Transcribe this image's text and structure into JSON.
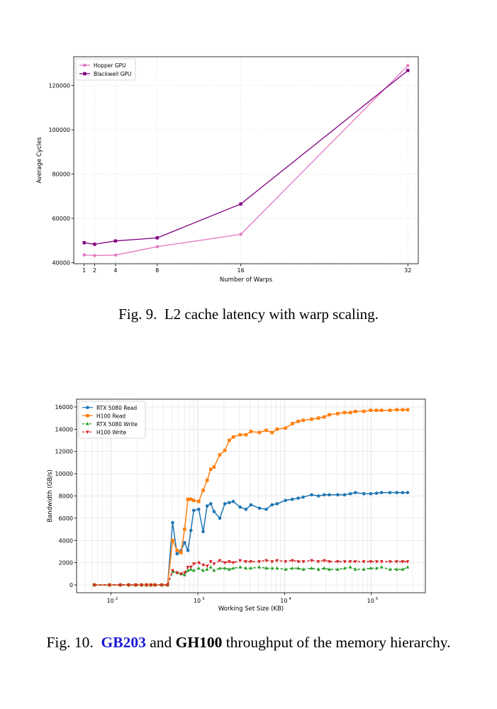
{
  "figure9": {
    "caption_prefix": "Fig. 9.",
    "caption_text": "L2 cache latency with warp scaling.",
    "chart_data": {
      "type": "line",
      "xlabel": "Number of Warps",
      "ylabel": "Average Cycles",
      "xlim": [
        0,
        33
      ],
      "ylim": [
        39500,
        133000
      ],
      "x_ticks": [
        1,
        2,
        4,
        8,
        16,
        32
      ],
      "y_ticks": [
        40000,
        60000,
        80000,
        100000,
        120000
      ],
      "grid": true,
      "legend_position": "top-left",
      "x": [
        1,
        2,
        4,
        8,
        16,
        32
      ],
      "series": [
        {
          "name": "Hopper GPU",
          "color": "#e377c2",
          "marker": "circle",
          "values": [
            43500,
            43200,
            43400,
            47200,
            52800,
            129000
          ]
        },
        {
          "name": "Blackwell GPU",
          "color": "#800080",
          "marker": "square",
          "values": [
            49000,
            48300,
            49800,
            51200,
            66500,
            126800
          ]
        }
      ]
    }
  },
  "figure10": {
    "caption_prefix": "Fig. 10.",
    "caption_gpu1": "GB203",
    "caption_and": "and",
    "caption_gpu2": "GH100",
    "caption_rest": "throughput of the memory hierarchy.",
    "chart_data": {
      "type": "line",
      "xlabel": "Working Set Size (KB)",
      "ylabel": "Bandwidth (GB/s)",
      "x_scale": "log",
      "xlim": [
        40,
        420000
      ],
      "ylim": [
        -700,
        16700
      ],
      "y_ticks": [
        0,
        2000,
        4000,
        6000,
        8000,
        10000,
        12000,
        14000,
        16000
      ],
      "grid": true,
      "legend_position": "top-left",
      "series": [
        {
          "name": "RTX 5080 Read",
          "color": "#1f77b4",
          "marker": "circle",
          "linestyle": "solid",
          "x": [
            64,
            96,
            128,
            160,
            192,
            224,
            256,
            288,
            320,
            384,
            448,
            512,
            576,
            640,
            704,
            768,
            832,
            896,
            1024,
            1152,
            1280,
            1408,
            1536,
            1792,
            2048,
            2304,
            2560,
            3072,
            3584,
            4096,
            5120,
            6144,
            7168,
            8192,
            10240,
            12288,
            14336,
            16384,
            20480,
            24576,
            28672,
            32768,
            40960,
            49152,
            57344,
            65536,
            81920,
            98304,
            114688,
            131072,
            163840,
            196608,
            229376,
            262144
          ],
          "values": [
            0,
            0,
            0,
            0,
            0,
            0,
            0,
            0,
            0,
            0,
            0,
            5600,
            2800,
            3100,
            3800,
            3100,
            4900,
            6700,
            6800,
            4800,
            7100,
            7300,
            6600,
            6000,
            7300,
            7400,
            7500,
            7000,
            6800,
            7200,
            6900,
            6800,
            7200,
            7300,
            7600,
            7700,
            7800,
            7900,
            8100,
            8000,
            8100,
            8100,
            8100,
            8100,
            8200,
            8300,
            8200,
            8200,
            8250,
            8300,
            8300,
            8300,
            8300,
            8300
          ],
          "x_alt": []
        },
        {
          "name": "H100 Read",
          "color": "#ff7f0e",
          "marker": "square",
          "linestyle": "solid",
          "x": [
            64,
            96,
            128,
            160,
            192,
            224,
            256,
            288,
            320,
            384,
            448,
            512,
            576,
            640,
            704,
            768,
            832,
            896,
            1024,
            1152,
            1280,
            1408,
            1536,
            1792,
            2048,
            2304,
            2560,
            3072,
            3584,
            4096,
            5120,
            6144,
            7168,
            8192,
            10240,
            12288,
            14336,
            16384,
            20480,
            24576,
            28672,
            32768,
            40960,
            49152,
            57344,
            65536,
            81920,
            98304,
            114688,
            131072,
            163840,
            196608,
            229376,
            262144
          ],
          "values": [
            0,
            0,
            0,
            0,
            0,
            0,
            0,
            0,
            0,
            0,
            0,
            4000,
            3100,
            2900,
            5000,
            7700,
            7700,
            7600,
            7500,
            8500,
            9400,
            10400,
            10600,
            11700,
            12100,
            13000,
            13300,
            13500,
            13500,
            13800,
            13700,
            13900,
            13700,
            14000,
            14100,
            14500,
            14700,
            14800,
            14900,
            15000,
            15100,
            15300,
            15400,
            15500,
            15500,
            15600,
            15600,
            15700,
            15700,
            15700,
            15700,
            15750,
            15750,
            15750
          ]
        },
        {
          "name": "RTX 5080 Write",
          "color": "#2ca02c",
          "marker": "triangle-up",
          "linestyle": "dashed",
          "x": [
            64,
            96,
            128,
            160,
            192,
            224,
            256,
            288,
            320,
            384,
            448,
            512,
            576,
            640,
            704,
            768,
            832,
            896,
            1024,
            1152,
            1280,
            1408,
            1536,
            1792,
            2048,
            2304,
            2560,
            3072,
            3584,
            4096,
            5120,
            6144,
            7168,
            8192,
            10240,
            12288,
            14336,
            16384,
            20480,
            24576,
            28672,
            32768,
            40960,
            49152,
            57344,
            65536,
            81920,
            98304,
            114688,
            131072,
            163840,
            196608,
            229376,
            262144
          ],
          "values": [
            0,
            0,
            0,
            0,
            0,
            0,
            0,
            0,
            0,
            0,
            0,
            1200,
            1100,
            1000,
            900,
            1300,
            1400,
            1300,
            1500,
            1300,
            1400,
            1600,
            1300,
            1500,
            1500,
            1400,
            1500,
            1600,
            1500,
            1500,
            1600,
            1500,
            1500,
            1500,
            1400,
            1500,
            1500,
            1400,
            1500,
            1400,
            1500,
            1400,
            1400,
            1500,
            1600,
            1400,
            1400,
            1500,
            1500,
            1600,
            1400,
            1400,
            1400,
            1600
          ]
        },
        {
          "name": "H100 Write",
          "color": "#d62728",
          "marker": "triangle-down",
          "linestyle": "dashed",
          "x": [
            64,
            96,
            128,
            160,
            192,
            224,
            256,
            288,
            320,
            384,
            448,
            512,
            576,
            640,
            704,
            768,
            832,
            896,
            1024,
            1152,
            1280,
            1408,
            1536,
            1792,
            2048,
            2304,
            2560,
            3072,
            3584,
            4096,
            5120,
            6144,
            7168,
            8192,
            10240,
            12288,
            14336,
            16384,
            20480,
            24576,
            28672,
            32768,
            40960,
            49152,
            57344,
            65536,
            81920,
            98304,
            114688,
            131072,
            163840,
            196608,
            229376,
            262144
          ],
          "values": [
            0,
            0,
            0,
            0,
            0,
            0,
            0,
            0,
            0,
            0,
            0,
            1300,
            1100,
            1000,
            1100,
            1600,
            1600,
            1900,
            2000,
            1800,
            1700,
            2100,
            1900,
            2200,
            2000,
            2100,
            2000,
            2200,
            2100,
            2100,
            2100,
            2200,
            2100,
            2200,
            2100,
            2200,
            2100,
            2100,
            2200,
            2100,
            2200,
            2100,
            2100,
            2100,
            2100,
            2100,
            2100,
            2100,
            2100,
            2100,
            2100,
            2100,
            2100,
            2100
          ]
        }
      ]
    }
  }
}
